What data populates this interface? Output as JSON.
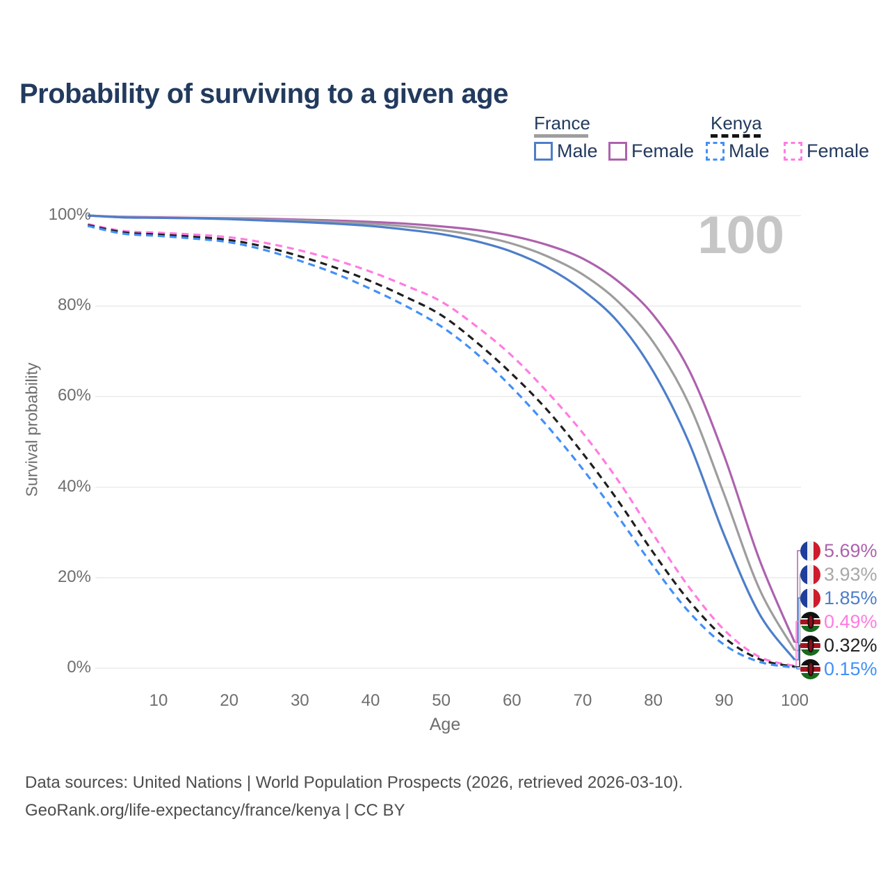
{
  "title": "Probability of surviving to a given age",
  "watermark": "100",
  "legend": {
    "groups": [
      {
        "label": "France",
        "line_style": "solid",
        "underline_color": "#9e9e9e",
        "items": [
          {
            "label": "Male",
            "series": "France Male"
          },
          {
            "label": "Female",
            "series": "France Female"
          }
        ]
      },
      {
        "label": "Kenya",
        "line_style": "dashed",
        "underline_color": "#141414",
        "items": [
          {
            "label": "Male",
            "series": "Kenya Male"
          },
          {
            "label": "Female",
            "series": "Kenya Female"
          }
        ]
      }
    ]
  },
  "y_axis": {
    "title": "Survival probability",
    "tick_labels": [
      "100%",
      "80%",
      "60%",
      "40%",
      "20%",
      "0%"
    ]
  },
  "x_axis": {
    "title": "Age",
    "tick_labels": [
      "10",
      "20",
      "30",
      "40",
      "50",
      "60",
      "70",
      "80",
      "90",
      "100"
    ]
  },
  "end_labels": [
    {
      "value": "5.69%",
      "flag": "france",
      "series": "France Female",
      "color": "#ad62ad"
    },
    {
      "value": "3.93%",
      "flag": "france",
      "series": "France Total",
      "color": "#a8a8a8"
    },
    {
      "value": "1.85%",
      "flag": "france",
      "series": "France Male",
      "color": "#4d7ec9"
    },
    {
      "value": "0.49%",
      "flag": "kenya",
      "series": "Kenya Female",
      "color": "#ff7ce2"
    },
    {
      "value": "0.32%",
      "flag": "kenya",
      "series": "Kenya Total",
      "color": "#222222"
    },
    {
      "value": "0.15%",
      "flag": "kenya",
      "series": "Kenya Male",
      "color": "#4190f7"
    }
  ],
  "footer": {
    "line1": "Data sources: United Nations | World Population Prospects (2026, retrieved 2026-03-10).",
    "line2": "GeoRank.org/life-expectancy/france/kenya | CC BY"
  },
  "chart_data": {
    "type": "line",
    "title": "Probability of surviving to a given age",
    "xlabel": "Age",
    "ylabel": "Survival probability",
    "xlim": [
      0,
      100
    ],
    "ylim": [
      0,
      100
    ],
    "grid": "horizontal, every 20%",
    "legend_position": "top-right",
    "x": [
      0,
      5,
      10,
      15,
      20,
      25,
      30,
      35,
      40,
      45,
      50,
      55,
      60,
      65,
      70,
      75,
      80,
      85,
      90,
      95,
      100
    ],
    "series": [
      {
        "name": "France Female",
        "country": "France",
        "sex": "Female",
        "color": "#ad62ad",
        "dashed": false,
        "end_value_label": "5.69%",
        "values": [
          100,
          99.7,
          99.6,
          99.5,
          99.4,
          99.3,
          99.1,
          98.9,
          98.6,
          98.2,
          97.6,
          96.8,
          95.5,
          93.5,
          90.5,
          85.5,
          78,
          66,
          47,
          24,
          5.69
        ]
      },
      {
        "name": "France Total",
        "country": "France",
        "sex": "Both",
        "color": "#9d9d9d",
        "dashed": false,
        "end_value_label": "3.93%",
        "values": [
          100,
          99.6,
          99.5,
          99.4,
          99.3,
          99.1,
          98.9,
          98.6,
          98.2,
          97.6,
          96.8,
          95.6,
          93.8,
          91,
          87,
          81,
          72,
          58.5,
          38.5,
          17.5,
          3.93
        ]
      },
      {
        "name": "France Male",
        "country": "France",
        "sex": "Male",
        "color": "#4d7ec9",
        "dashed": false,
        "end_value_label": "1.85%",
        "values": [
          100,
          99.6,
          99.5,
          99.4,
          99.2,
          98.9,
          98.6,
          98.2,
          97.7,
          96.9,
          95.9,
          94.3,
          92,
          88.5,
          83.5,
          76.5,
          65.5,
          50,
          29.5,
          12,
          1.85
        ]
      },
      {
        "name": "Kenya Female",
        "country": "Kenya",
        "sex": "Female",
        "color": "#ff7ce2",
        "dashed": true,
        "end_value_label": "0.49%",
        "values": [
          98.1,
          96.6,
          96.2,
          95.8,
          95.2,
          94,
          92.3,
          90.2,
          87.6,
          84.5,
          81,
          75.5,
          69,
          61,
          52,
          41.5,
          29.5,
          18,
          8.5,
          2.5,
          0.49
        ]
      },
      {
        "name": "Kenya Total",
        "country": "Kenya",
        "sex": "Both",
        "color": "#1f1f1f",
        "dashed": true,
        "end_value_label": "0.32%",
        "values": [
          97.9,
          96.3,
          95.8,
          95.3,
          94.6,
          93.1,
          91,
          88.5,
          85.5,
          82,
          78,
          72,
          65,
          57,
          47.5,
          37,
          25.5,
          15,
          6.8,
          2,
          0.32
        ]
      },
      {
        "name": "Kenya Male",
        "country": "Kenya",
        "sex": "Male",
        "color": "#4190f7",
        "dashed": true,
        "end_value_label": "0.15%",
        "values": [
          97.7,
          96,
          95.5,
          94.9,
          94.1,
          92.4,
          90,
          87.2,
          83.8,
          80,
          75.5,
          69.5,
          62,
          53.5,
          44,
          33.5,
          22.5,
          12.5,
          5.2,
          1.4,
          0.15
        ]
      }
    ]
  }
}
